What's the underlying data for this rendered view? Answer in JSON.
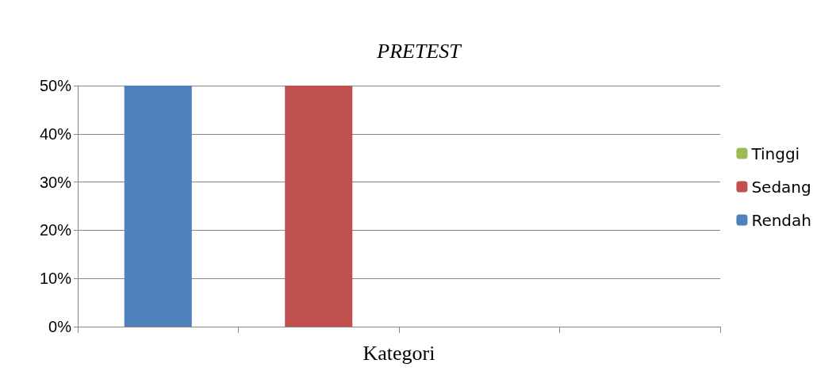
{
  "chart_data": {
    "type": "bar",
    "title": "PRETEST",
    "xlabel": "Kategori",
    "categories": [
      null,
      null,
      null,
      null
    ],
    "stacked": true,
    "series": [
      {
        "name": "Rendah",
        "color": "#4f81bd",
        "values": [
          50,
          null,
          null,
          null
        ]
      },
      {
        "name": "Sedang",
        "color": "#c0504d",
        "values": [
          null,
          50,
          null,
          null
        ]
      },
      {
        "name": "Tinggi",
        "color": "#9bbb59",
        "values": [
          null,
          null,
          0,
          null
        ]
      }
    ],
    "ylim": [
      0,
      50
    ],
    "yticks": [
      {
        "value": 0,
        "label": "0%"
      },
      {
        "value": 10,
        "label": "10%"
      },
      {
        "value": 20,
        "label": "20%"
      },
      {
        "value": 30,
        "label": "30%"
      },
      {
        "value": 40,
        "label": "40%"
      },
      {
        "value": 50,
        "label": "50%"
      }
    ],
    "grid": "y",
    "legend": "right"
  }
}
